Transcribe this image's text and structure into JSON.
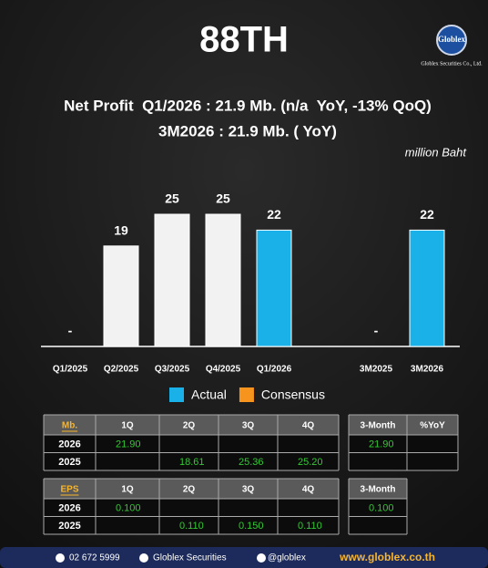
{
  "header": {
    "title": "88TH",
    "logo": "Globlex",
    "company": "Globlex Securities Co., Ltd.",
    "headline": "Net Profit  Q1/2026 : 21.9 Mb. (n/a  YoY, -13% QoQ)",
    "subline": "3M2026 : 21.9 Mb. ( YoY)"
  },
  "chart_data": {
    "type": "bar",
    "unit_label": "million Baht",
    "categories": [
      "Q1/2025",
      "Q2/2025",
      "Q3/2025",
      "Q4/2025",
      "Q1/2026",
      null,
      "3M2025",
      "3M2026"
    ],
    "values": [
      null,
      19,
      25,
      25,
      22,
      null,
      null,
      22
    ],
    "value_labels": [
      "-",
      "19",
      "25",
      "25",
      "22",
      null,
      "-",
      "22"
    ],
    "colors": [
      "#f2f2f2",
      "#f2f2f2",
      "#f2f2f2",
      "#f2f2f2",
      "#1ab0e8",
      "#f2f2f2",
      "#f2f2f2",
      "#1ab0e8"
    ],
    "ylim": [
      0,
      30
    ],
    "legend": [
      {
        "name": "Actual",
        "color": "#1ab0e8"
      },
      {
        "name": "Consensus",
        "color": "#f7941d"
      }
    ]
  },
  "tables": [
    {
      "header": [
        "Mb.",
        "1Q",
        "2Q",
        "3Q",
        "4Q"
      ],
      "rows": [
        [
          "2026",
          "21.90",
          null,
          null,
          null
        ],
        [
          "2025",
          null,
          "18.61",
          "25.36",
          "25.20"
        ]
      ]
    },
    {
      "header": [
        "3-Month",
        "%YoY"
      ],
      "rows": [
        [
          "21.90",
          null
        ],
        [
          null,
          null
        ]
      ]
    },
    {
      "header": [
        "EPS",
        "1Q",
        "2Q",
        "3Q",
        "4Q"
      ],
      "rows": [
        [
          "2026",
          "0.100",
          null,
          null,
          null
        ],
        [
          "2025",
          null,
          "0.110",
          "0.150",
          "0.110"
        ]
      ]
    },
    {
      "header": [
        "3-Month"
      ],
      "rows": [
        [
          "0.100"
        ],
        [
          null
        ]
      ]
    }
  ],
  "footer": {
    "phone": "02 672 5999",
    "facebook": "Globlex Securities",
    "line": "@globlex",
    "website": "www.globlex.co.th"
  }
}
